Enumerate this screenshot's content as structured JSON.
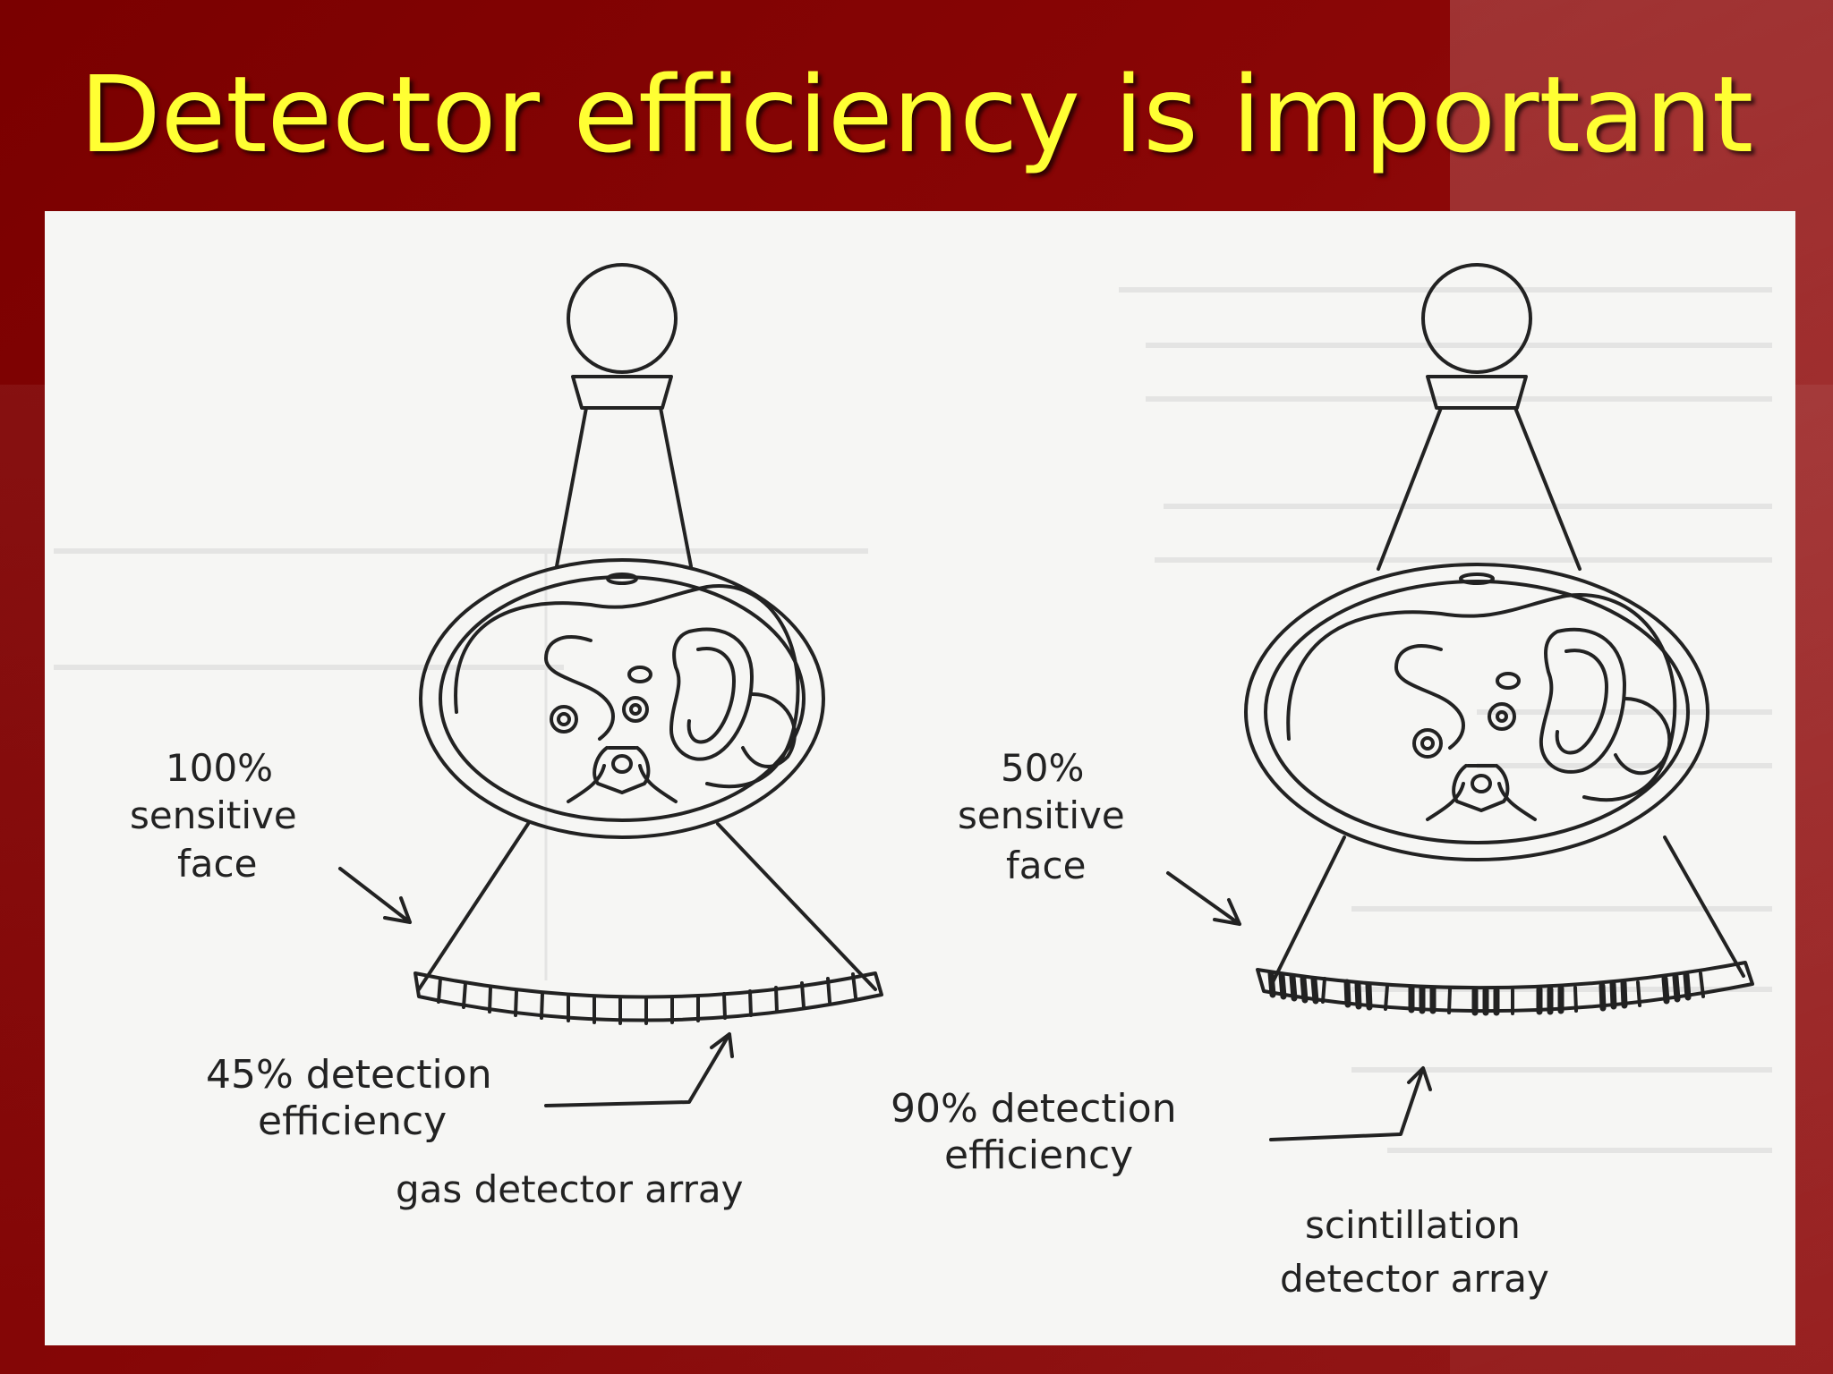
{
  "slide": {
    "title": "Detector efficiency is important",
    "title_color": "#ffff33",
    "background_color": "#7a0000"
  },
  "diagram": {
    "left": {
      "sensitive_face_percent": "100%",
      "sensitive_face_label_1": "sensitive",
      "sensitive_face_label_2": "face",
      "efficiency_line_1": "45% detection",
      "efficiency_line_2": "efficiency",
      "array_label": "gas detector array"
    },
    "right": {
      "sensitive_face_percent": "50%",
      "sensitive_face_label_1": "sensitive",
      "sensitive_face_label_2": "face",
      "efficiency_line_1": "90% detection",
      "efficiency_line_2": "efficiency",
      "array_label_1": "scintillation",
      "array_label_2": "detector array"
    }
  }
}
